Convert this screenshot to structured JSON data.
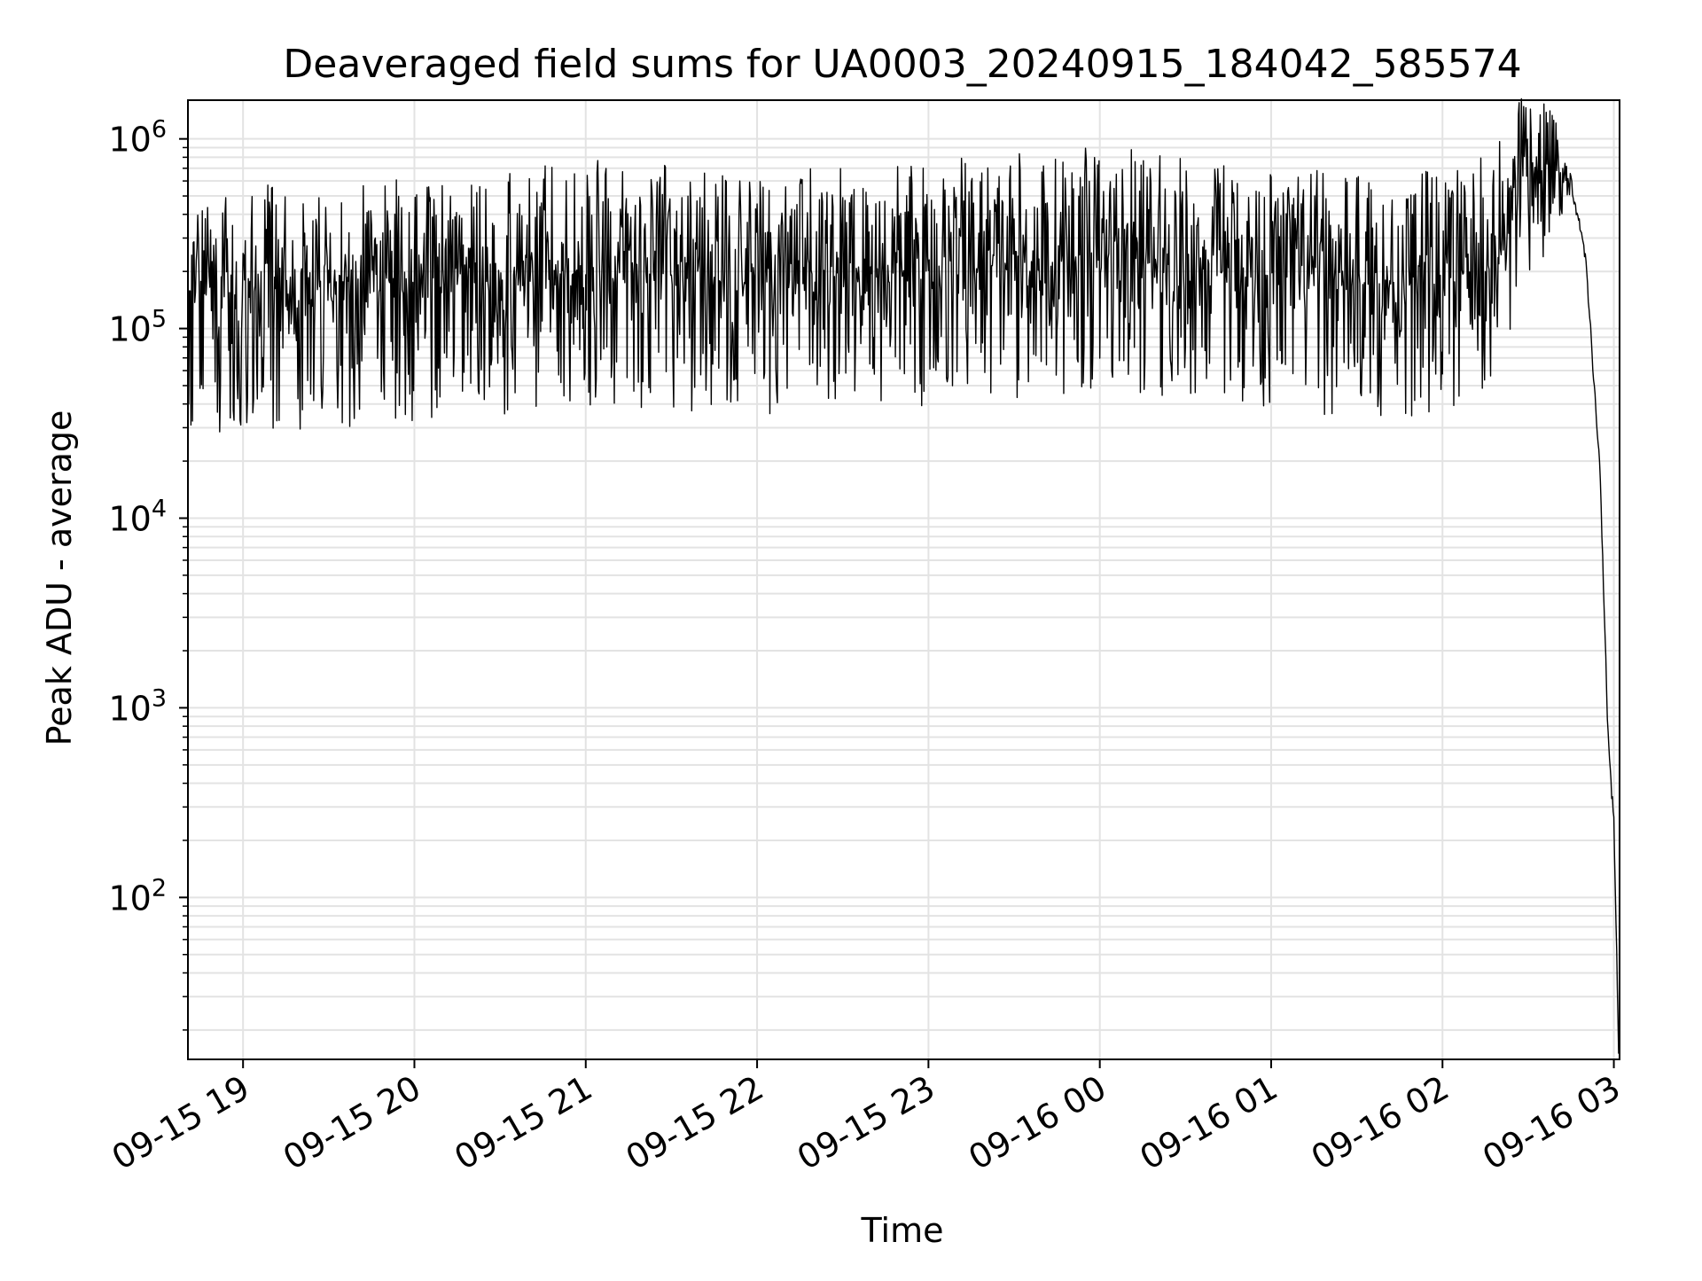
{
  "chart_data": {
    "type": "line",
    "title": "Deaveraged field sums for UA0003_20240915_184042_585574",
    "xlabel": "Time",
    "ylabel": "Peak ADU - average",
    "x_scale": "time",
    "y_scale": "log",
    "xlim": [
      "2024-09-15 18:40:42",
      "2024-09-16 03:02:00"
    ],
    "ylim": [
      14,
      1600000
    ],
    "grid": true,
    "legend": "none",
    "line_color": "#000000",
    "x_ticks": [
      {
        "label": "09-15 19",
        "value": "2024-09-15 19:00:00"
      },
      {
        "label": "09-15 20",
        "value": "2024-09-15 20:00:00"
      },
      {
        "label": "09-15 21",
        "value": "2024-09-15 21:00:00"
      },
      {
        "label": "09-15 22",
        "value": "2024-09-15 22:00:00"
      },
      {
        "label": "09-15 23",
        "value": "2024-09-15 23:00:00"
      },
      {
        "label": "09-16 00",
        "value": "2024-09-16 00:00:00"
      },
      {
        "label": "09-16 01",
        "value": "2024-09-16 01:00:00"
      },
      {
        "label": "09-16 02",
        "value": "2024-09-16 02:00:00"
      },
      {
        "label": "09-16 03",
        "value": "2024-09-16 03:00:00"
      }
    ],
    "y_ticks": [
      {
        "base": "10",
        "exp": "2",
        "value": 100
      },
      {
        "base": "10",
        "exp": "3",
        "value": 1000
      },
      {
        "base": "10",
        "exp": "4",
        "value": 10000
      },
      {
        "base": "10",
        "exp": "5",
        "value": 100000
      },
      {
        "base": "10",
        "exp": "6",
        "value": 1000000
      }
    ],
    "series": [
      {
        "x": [
          "2024-09-15 18:40:42",
          "2024-09-15 18:55:00",
          "2024-09-15 19:10:00",
          "2024-09-15 19:30:00",
          "2024-09-15 20:00:00",
          "2024-09-15 20:30:00",
          "2024-09-15 21:00:00",
          "2024-09-15 21:30:00",
          "2024-09-15 22:00:00",
          "2024-09-15 22:30:00",
          "2024-09-15 23:00:00",
          "2024-09-15 23:30:00",
          "2024-09-16 00:00:00",
          "2024-09-16 00:30:00",
          "2024-09-16 01:00:00",
          "2024-09-16 01:30:00",
          "2024-09-16 02:00:00",
          "2024-09-16 02:15:00",
          "2024-09-16 02:20:00",
          "2024-09-16 02:25:00",
          "2024-09-16 02:30:00",
          "2024-09-16 02:35:00",
          "2024-09-16 02:40:00",
          "2024-09-16 02:45:00",
          "2024-09-16 02:50:00",
          "2024-09-16 02:55:00",
          "2024-09-16 02:58:00",
          "2024-09-16 03:00:00",
          "2024-09-16 03:01:00",
          "2024-09-16 03:01:40"
        ],
        "y": [
          160000,
          140000,
          150000,
          150000,
          160000,
          180000,
          200000,
          190000,
          170000,
          190000,
          200000,
          220000,
          240000,
          210000,
          190000,
          170000,
          180000,
          210000,
          260000,
          380000,
          550000,
          700000,
          680000,
          600000,
          250000,
          20000,
          700,
          250,
          50,
          15
        ]
      }
    ]
  }
}
